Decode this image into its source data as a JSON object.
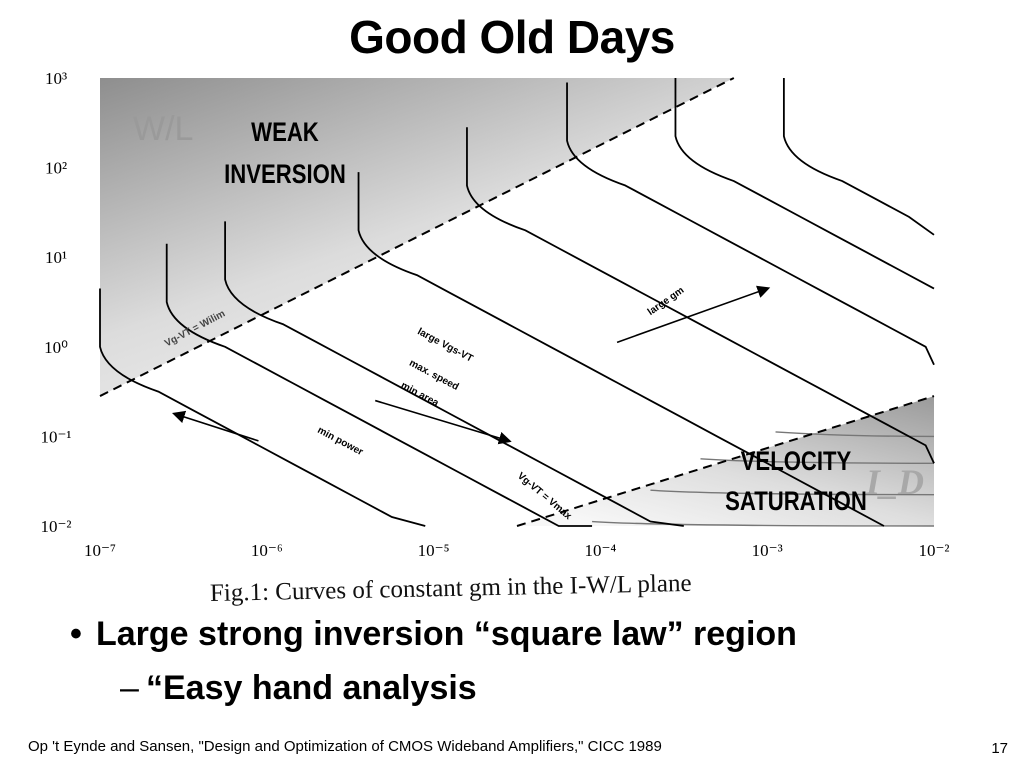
{
  "slide": {
    "title": "Good Old Days",
    "bullet": "Large strong inversion “square law” region",
    "sub_bullet": "“Easy hand analysis",
    "footer": "Op 't Eynde and Sansen, \"Design and Optimization of CMOS Wideband Amplifiers,\" CICC 1989",
    "page_number": "17",
    "bullet_marker": "•",
    "sub_marker": "–"
  },
  "chart_data": {
    "type": "line",
    "caption": "Fig.1: Curves of constant gm in the I-W/L  plane",
    "ylabel": "W/L",
    "xlabel": "I_D",
    "xlim_log10": [
      -7,
      -2
    ],
    "ylim_log10": [
      -2,
      3
    ],
    "x_ticks": [
      {
        "exp": -7,
        "label": "10⁻⁷"
      },
      {
        "exp": -6,
        "label": "10⁻⁶"
      },
      {
        "exp": -5,
        "label": "10⁻⁵"
      },
      {
        "exp": -4,
        "label": "10⁻⁴"
      },
      {
        "exp": -3,
        "label": "10⁻³"
      },
      {
        "exp": -2,
        "label": "10⁻²"
      }
    ],
    "y_ticks": [
      {
        "exp": 3,
        "label": "10³"
      },
      {
        "exp": 2,
        "label": "10²"
      },
      {
        "exp": 1,
        "label": "10¹"
      },
      {
        "exp": 0,
        "label": "10⁰"
      },
      {
        "exp": -1,
        "label": "10⁻¹"
      },
      {
        "exp": -2,
        "label": "10⁻²"
      }
    ],
    "regions": [
      {
        "name": "WEAK INVERSION",
        "lines": [
          "WEAK",
          "INVERSION"
        ]
      },
      {
        "name": "VELOCITY SATURATION",
        "lines": [
          "VELOCITY",
          "SATURATION"
        ]
      }
    ],
    "boundaries": [
      {
        "label": "Vg-VT = Wilim",
        "from": [
          -7,
          -0.55
        ],
        "to": [
          -3.2,
          3
        ]
      },
      {
        "label": "Vg-VT = Vmax",
        "from": [
          -4.5,
          -2
        ],
        "to": [
          -2,
          -0.55
        ]
      }
    ],
    "gm_curves": [
      {
        "x_knee": -7.0,
        "top_y": 0.65
      },
      {
        "x_knee": -6.6,
        "top_y": 1.15
      },
      {
        "x_knee": -6.25,
        "top_y": 1.4
      },
      {
        "x_knee": -5.45,
        "top_y": 1.95
      },
      {
        "x_knee": -4.8,
        "top_y": 2.45
      },
      {
        "x_knee": -4.2,
        "top_y": 2.95
      },
      {
        "x_knee": -3.55,
        "top_y": 3.0
      },
      {
        "x_knee": -2.9,
        "top_y": 3.0
      }
    ],
    "annotations": [
      {
        "text": "large Vgs-VT",
        "at": [
          -5.1,
          0.15
        ],
        "angle": 28
      },
      {
        "text": "max. speed",
        "at": [
          -5.15,
          -0.2
        ],
        "angle": 28
      },
      {
        "text": "min area",
        "at": [
          -5.2,
          -0.45
        ],
        "angle": 28
      },
      {
        "text": "min power",
        "at": [
          -5.7,
          -0.95
        ],
        "angle": 28
      },
      {
        "text": "large gm",
        "at": [
          -3.7,
          0.35
        ],
        "angle": -35
      },
      {
        "text": "Vg-VT = Vmax",
        "at": [
          -4.5,
          -1.45
        ],
        "angle": 40
      }
    ],
    "arrows": [
      {
        "name": "large-gm-arrow",
        "from": [
          -3.9,
          0.05
        ],
        "to": [
          -3.0,
          0.65
        ]
      },
      {
        "name": "max-speed-arrow",
        "from": [
          -5.35,
          -0.6
        ],
        "to": [
          -4.55,
          -1.05
        ]
      },
      {
        "name": "min-power-arrow",
        "from": [
          -6.05,
          -1.05
        ],
        "to": [
          -6.55,
          -0.75
        ]
      }
    ]
  }
}
